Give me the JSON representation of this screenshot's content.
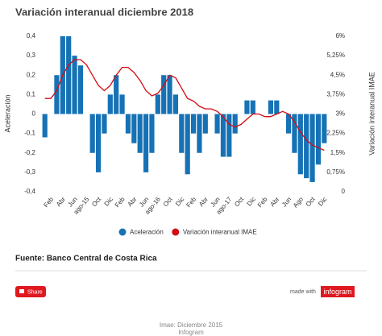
{
  "chart_data": {
    "type": "combo",
    "title": "Variación interanual diciembre 2018",
    "y_label": "Aceleración",
    "y2_label": "Variación interanual IMAE",
    "categories": [
      null,
      "Feb",
      null,
      "Abr",
      null,
      "Jun",
      null,
      "ago-15",
      null,
      "Oct",
      null,
      "Dic",
      null,
      "Feb",
      null,
      "Abr",
      null,
      "Jun",
      null,
      "ago-16",
      null,
      "Oct",
      null,
      "Dic",
      null,
      "Feb",
      null,
      "Abr",
      null,
      "Jun",
      null,
      "ago-17",
      null,
      "Oct",
      null,
      "Dic",
      null,
      "Feb",
      null,
      "Abr",
      null,
      "Jun",
      null,
      "Ago",
      null,
      "Oct",
      null,
      "Dic"
    ],
    "series": [
      {
        "name": "Aceleración",
        "type": "bar",
        "color": "#1672b5",
        "values": [
          -0.12,
          0,
          0.2,
          0.4,
          0.4,
          0.3,
          0.25,
          0,
          -0.2,
          -0.3,
          -0.1,
          0.1,
          0.2,
          0.1,
          -0.1,
          -0.15,
          -0.2,
          -0.3,
          -0.2,
          0.1,
          0.2,
          0.2,
          0.1,
          -0.2,
          -0.31,
          -0.1,
          -0.2,
          -0.1,
          0,
          -0.1,
          -0.22,
          -0.22,
          -0.1,
          0,
          0.07,
          0.07,
          0,
          0,
          0.07,
          0.07,
          0,
          -0.1,
          -0.2,
          -0.31,
          -0.33,
          -0.35,
          -0.26,
          -0.15
        ]
      },
      {
        "name": "Variación interanual IMAE",
        "type": "line",
        "color": "#d40a14",
        "axis": "y2",
        "values": [
          3.6,
          3.6,
          3.9,
          4.5,
          4.9,
          5.1,
          5.1,
          4.9,
          4.5,
          4.1,
          3.9,
          4.1,
          4.5,
          4.8,
          4.8,
          4.6,
          4.3,
          3.9,
          3.7,
          3.8,
          4.1,
          4.5,
          4.4,
          4.0,
          3.6,
          3.5,
          3.3,
          3.2,
          3.2,
          3.1,
          2.9,
          2.6,
          2.5,
          2.6,
          2.8,
          3.0,
          3.0,
          2.9,
          2.9,
          3.0,
          3.1,
          3.0,
          2.7,
          2.3,
          2.0,
          1.8,
          1.7,
          1.6
        ]
      }
    ],
    "ylim": [
      -0.4,
      0.4
    ],
    "yticks": [
      {
        "value": 0.4,
        "label": "0,4"
      },
      {
        "value": 0.3,
        "label": "0,3"
      },
      {
        "value": 0.2,
        "label": "0,2"
      },
      {
        "value": 0.1,
        "label": "0,1"
      },
      0,
      {
        "value": -0.1,
        "label": "-0,1"
      },
      {
        "value": -0.2,
        "label": "-0,2"
      },
      {
        "value": -0.3,
        "label": "-0,3"
      },
      {
        "value": -0.4,
        "label": "-0,4"
      }
    ],
    "y2lim": [
      0,
      6
    ],
    "y2ticks": [
      {
        "value": 6,
        "label": "6%"
      },
      {
        "value": 5.25,
        "label": "5,25%"
      },
      {
        "value": 4.5,
        "label": "4,5%"
      },
      {
        "value": 3.75,
        "label": "3,75%"
      },
      {
        "value": 3,
        "label": "3%"
      },
      {
        "value": 2.25,
        "label": "2,25%"
      },
      {
        "value": 1.5,
        "label": "1,5%"
      },
      {
        "value": 0.75,
        "label": "0,75%"
      },
      0
    ],
    "grid": false
  },
  "source": "Fuente: Banco Central de Costa Rica",
  "share_button": "Share",
  "made_with": "made with",
  "brand": "infogram",
  "footer": {
    "caption": "Imae: Diciembre 2015",
    "credit": "Infogram"
  }
}
